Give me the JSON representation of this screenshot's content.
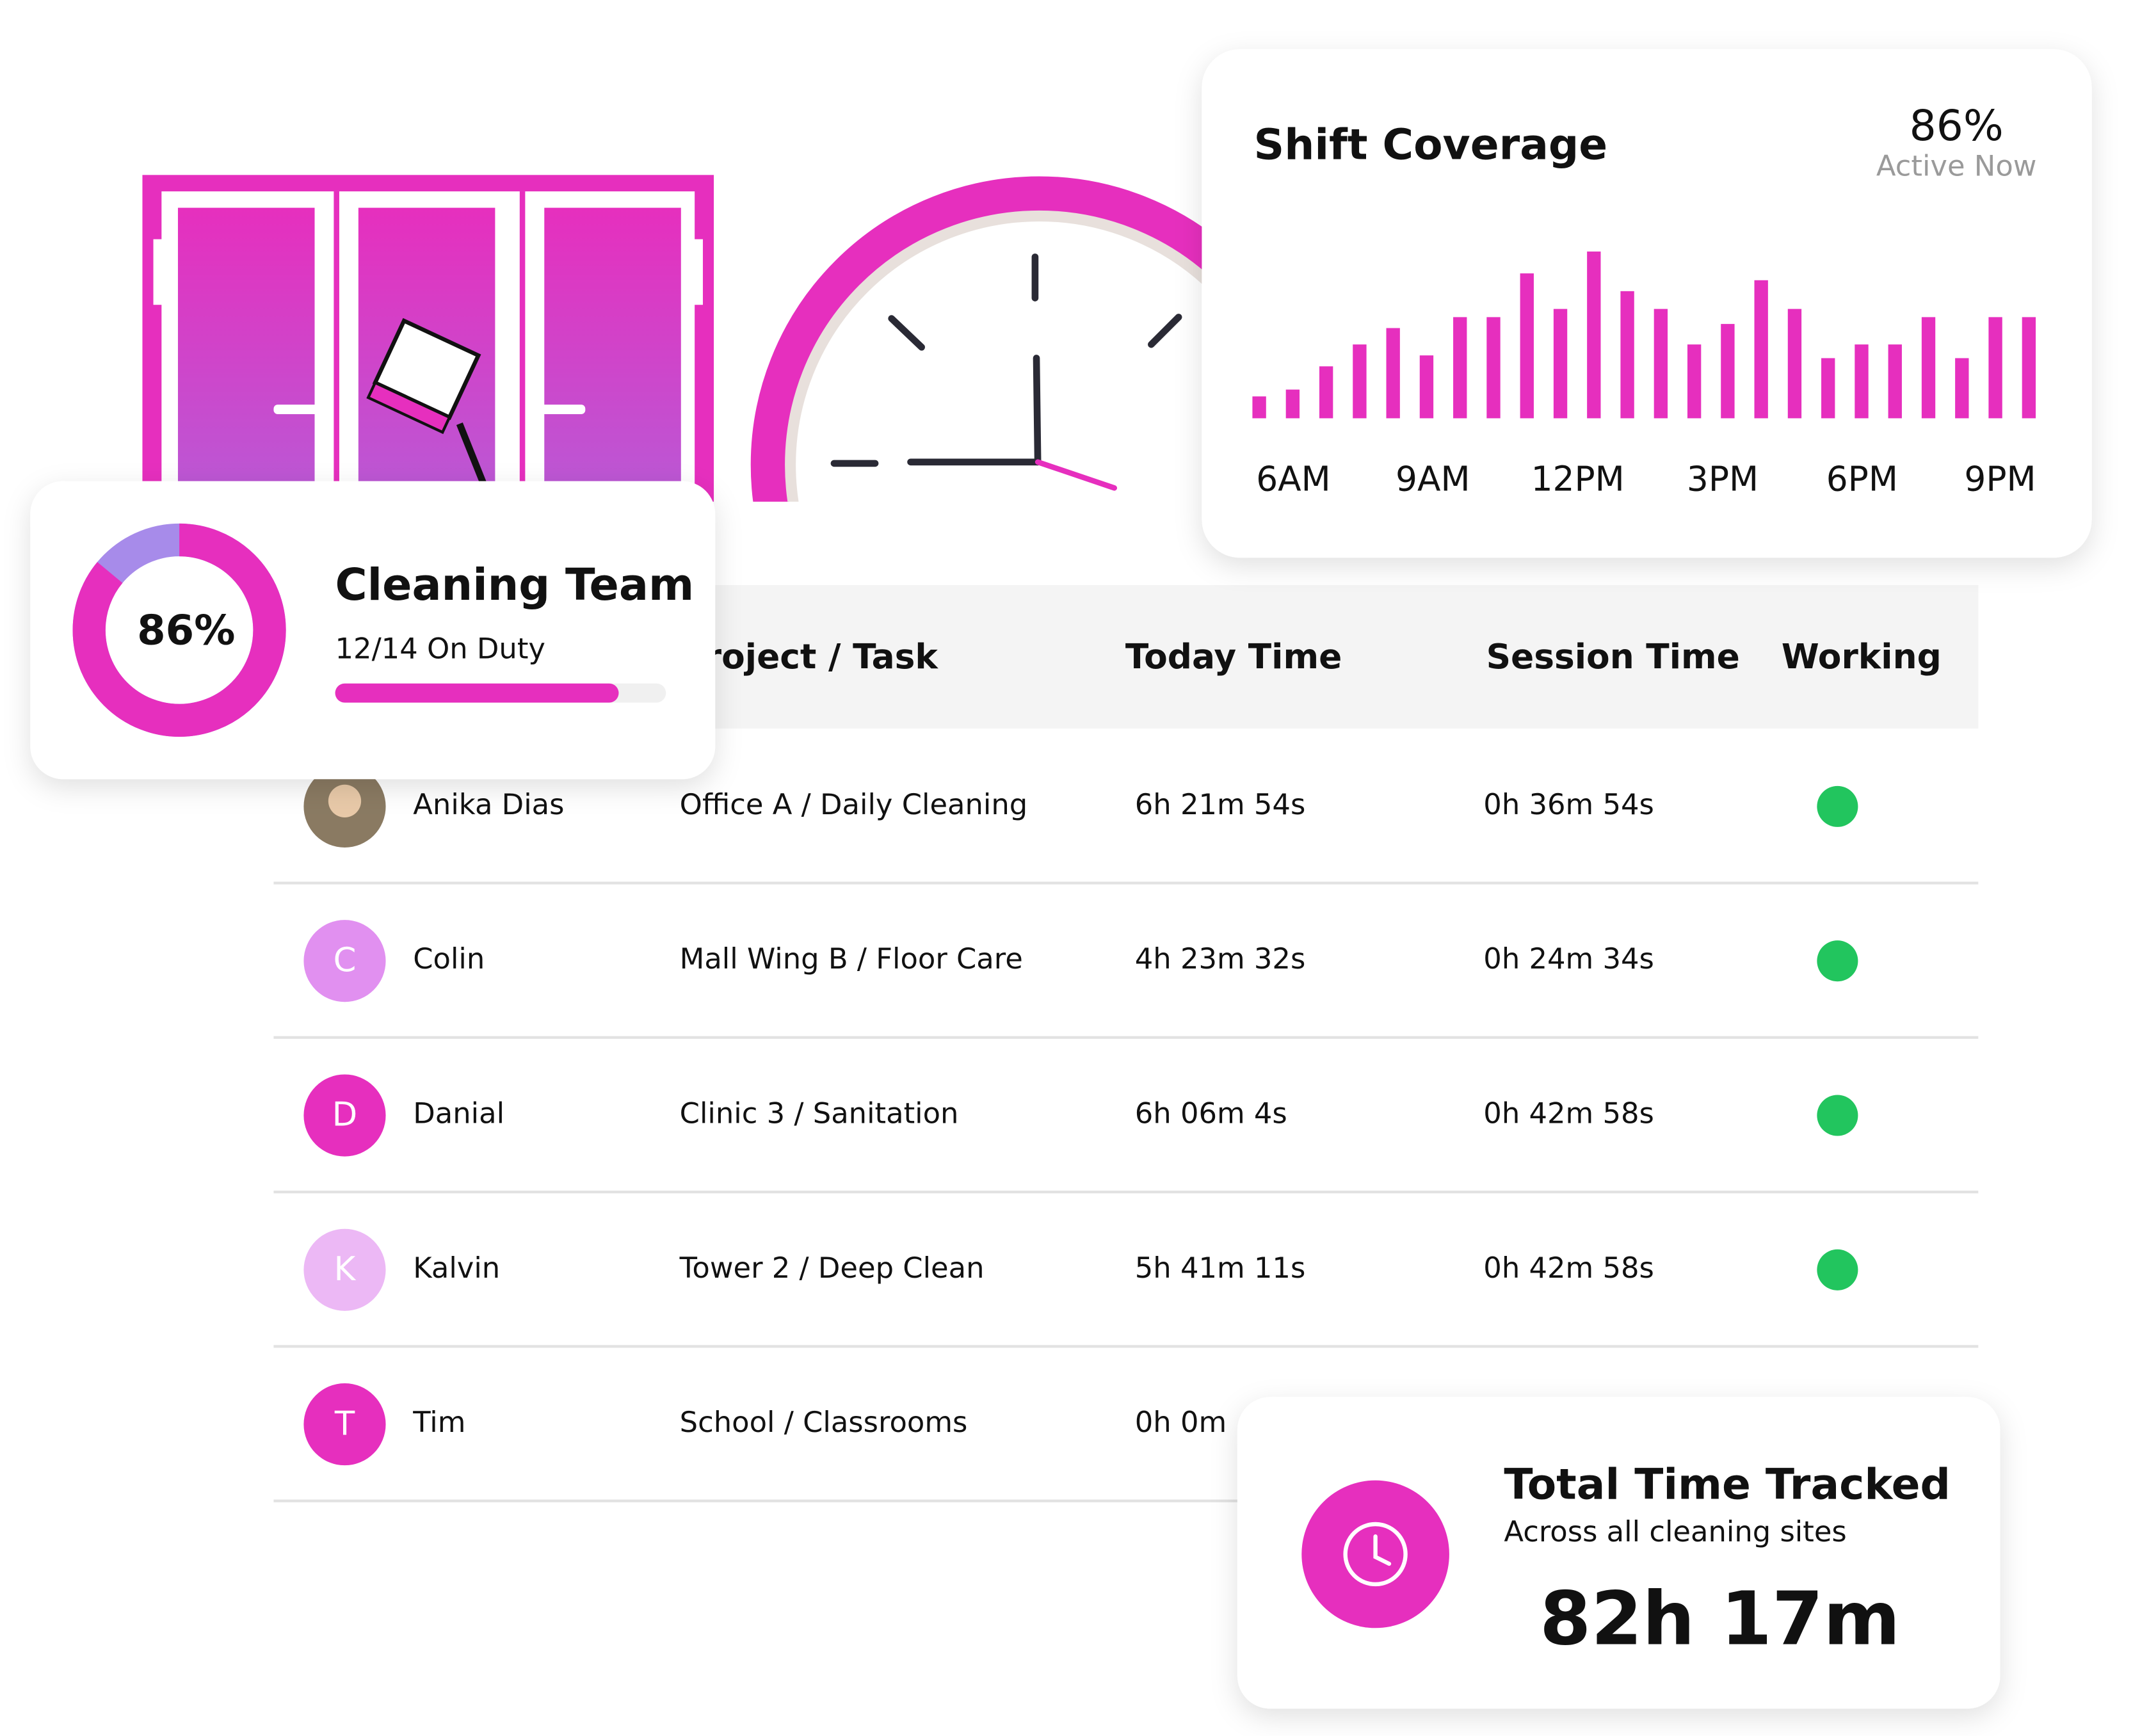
{
  "shift_coverage": {
    "title": "Shift Coverage",
    "value_label": "86%",
    "subtitle": "Active Now",
    "x_labels": [
      "6AM",
      "9AM",
      "12PM",
      "3PM",
      "6PM",
      "9PM"
    ],
    "bars": [
      16,
      21,
      38,
      54,
      66,
      46,
      74,
      74,
      106,
      80,
      122,
      93,
      80,
      54,
      69,
      101,
      80,
      44,
      54,
      54,
      74,
      44,
      74,
      74
    ],
    "color": "#e62fbe"
  },
  "team_card": {
    "title": "Cleaning Team",
    "percent": 86,
    "percent_label": "86%",
    "duty_label": "12/14 On Duty",
    "on_duty": 12,
    "total": 14
  },
  "table": {
    "headers": [
      "Project / Task",
      "Today Time",
      "Session Time",
      "Working"
    ],
    "rows": [
      {
        "initial": null,
        "name": "Anika Dias",
        "task": "Office A / Daily Cleaning",
        "today": "6h 21m 54s",
        "session": "0h 36m 54s",
        "working": true
      },
      {
        "initial": "C",
        "name": "Colin",
        "task": "Mall Wing B / Floor Care",
        "today": "4h 23m 32s",
        "session": "0h 24m 34s",
        "working": true
      },
      {
        "initial": "D",
        "name": "Danial",
        "task": "Clinic 3 / Sanitation",
        "today": "6h 06m 4s",
        "session": "0h 42m 58s",
        "working": true
      },
      {
        "initial": "K",
        "name": "Kalvin",
        "task": "Tower 2 / Deep Clean",
        "today": "5h 41m 11s",
        "session": "0h 42m 58s",
        "working": true
      },
      {
        "initial": "T",
        "name": "Tim",
        "task": "School / Classrooms",
        "today": "0h 0m",
        "session": null,
        "working": null
      }
    ]
  },
  "total_card": {
    "title": "Total Time Tracked",
    "subtitle": "Across all cleaning sites",
    "value": "82h 17m"
  }
}
